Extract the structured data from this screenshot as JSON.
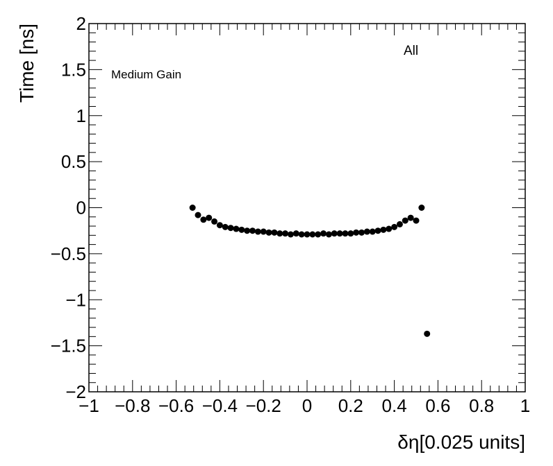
{
  "chart_data": {
    "type": "scatter",
    "title": "",
    "xlabel": "δη[0.025 units]",
    "ylabel": "Time [ns]",
    "xlim": [
      -1,
      1
    ],
    "ylim": [
      -2,
      2
    ],
    "xticks": [
      -1,
      -0.8,
      -0.6,
      -0.4,
      -0.2,
      0,
      0.2,
      0.4,
      0.6,
      0.8,
      1
    ],
    "xtick_labels": [
      "−1",
      "−0.8",
      "−0.6",
      "−0.4",
      "−0.2",
      "0",
      "0.2",
      "0.4",
      "0.6",
      "0.8",
      "1"
    ],
    "yticks": [
      -2,
      -1.5,
      -1,
      -0.5,
      0,
      0.5,
      1,
      1.5,
      2
    ],
    "ytick_labels": [
      "−2",
      "−1.5",
      "−1",
      "−0.5",
      "0",
      "0.5",
      "1",
      "1.5",
      "2"
    ],
    "grid": false,
    "annotations": [
      "Medium Gain",
      "All"
    ],
    "marker_color": "#000000",
    "series": [
      {
        "points": [
          [
            -0.525,
            0.0
          ],
          [
            -0.5,
            -0.08
          ],
          [
            -0.475,
            -0.13
          ],
          [
            -0.45,
            -0.11
          ],
          [
            -0.425,
            -0.15
          ],
          [
            -0.4,
            -0.19
          ],
          [
            -0.375,
            -0.21
          ],
          [
            -0.35,
            -0.22
          ],
          [
            -0.325,
            -0.23
          ],
          [
            -0.3,
            -0.24
          ],
          [
            -0.275,
            -0.25
          ],
          [
            -0.25,
            -0.25
          ],
          [
            -0.225,
            -0.26
          ],
          [
            -0.2,
            -0.26
          ],
          [
            -0.175,
            -0.27
          ],
          [
            -0.15,
            -0.27
          ],
          [
            -0.125,
            -0.28
          ],
          [
            -0.1,
            -0.28
          ],
          [
            -0.075,
            -0.29
          ],
          [
            -0.05,
            -0.28
          ],
          [
            -0.025,
            -0.29
          ],
          [
            0.0,
            -0.29
          ],
          [
            0.025,
            -0.29
          ],
          [
            0.05,
            -0.29
          ],
          [
            0.075,
            -0.28
          ],
          [
            0.1,
            -0.29
          ],
          [
            0.125,
            -0.28
          ],
          [
            0.15,
            -0.28
          ],
          [
            0.175,
            -0.28
          ],
          [
            0.2,
            -0.28
          ],
          [
            0.225,
            -0.27
          ],
          [
            0.25,
            -0.27
          ],
          [
            0.275,
            -0.26
          ],
          [
            0.3,
            -0.26
          ],
          [
            0.325,
            -0.25
          ],
          [
            0.35,
            -0.24
          ],
          [
            0.375,
            -0.23
          ],
          [
            0.4,
            -0.21
          ],
          [
            0.425,
            -0.18
          ],
          [
            0.45,
            -0.14
          ],
          [
            0.475,
            -0.11
          ],
          [
            0.5,
            -0.14
          ],
          [
            0.525,
            0.0
          ],
          [
            0.55,
            -1.37
          ]
        ]
      }
    ]
  }
}
